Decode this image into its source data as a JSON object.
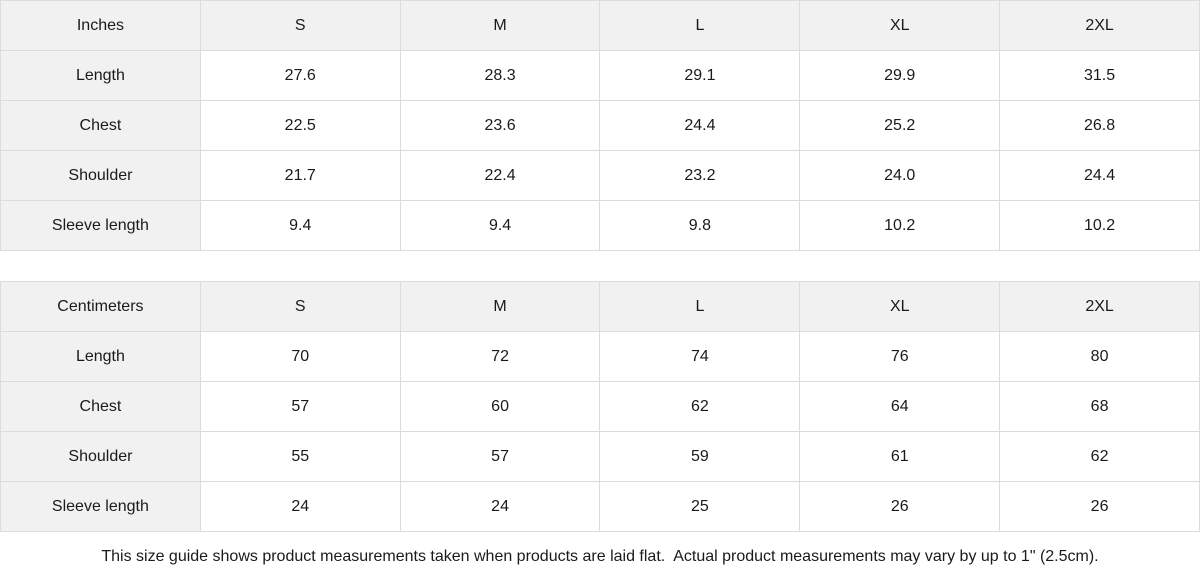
{
  "page": {
    "background_color": "#ffffff",
    "header_background_color": "#f1f1f1",
    "border_color": "#dcdcdc",
    "text_color": "#1a1a1a"
  },
  "tables": [
    {
      "unit_label": "Inches",
      "columns": [
        "S",
        "M",
        "L",
        "XL",
        "2XL"
      ],
      "rows": [
        {
          "label": "Length",
          "values": [
            "27.6",
            "28.3",
            "29.1",
            "29.9",
            "31.5"
          ]
        },
        {
          "label": "Chest",
          "values": [
            "22.5",
            "23.6",
            "24.4",
            "25.2",
            "26.8"
          ]
        },
        {
          "label": "Shoulder",
          "values": [
            "21.7",
            "22.4",
            "23.2",
            "24.0",
            "24.4"
          ]
        },
        {
          "label": "Sleeve length",
          "values": [
            "9.4",
            "9.4",
            "9.8",
            "10.2",
            "10.2"
          ]
        }
      ]
    },
    {
      "unit_label": "Centimeters",
      "columns": [
        "S",
        "M",
        "L",
        "XL",
        "2XL"
      ],
      "rows": [
        {
          "label": "Length",
          "values": [
            "70",
            "72",
            "74",
            "76",
            "80"
          ]
        },
        {
          "label": "Chest",
          "values": [
            "57",
            "60",
            "62",
            "64",
            "68"
          ]
        },
        {
          "label": "Shoulder",
          "values": [
            "55",
            "57",
            "59",
            "61",
            "62"
          ]
        },
        {
          "label": "Sleeve length",
          "values": [
            "24",
            "24",
            "25",
            "26",
            "26"
          ]
        }
      ]
    }
  ],
  "footer": {
    "note": "This size guide shows product measurements taken when products are laid flat.  Actual product measurements may vary by up to 1\" (2.5cm)."
  }
}
